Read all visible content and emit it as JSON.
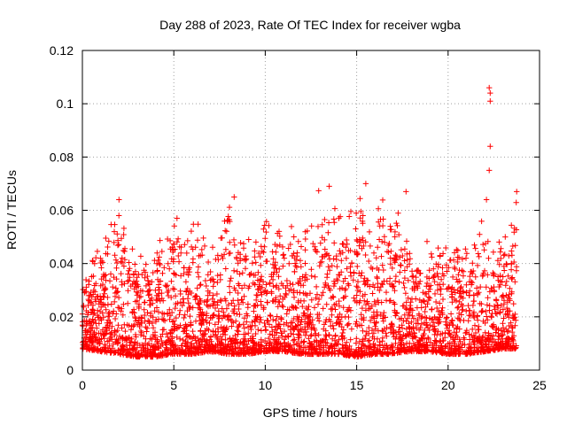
{
  "chart_data": {
    "type": "scatter",
    "title": "Day 288 of 2023, Rate Of TEC Index for receiver wgba",
    "xlabel": "GPS time / hours",
    "ylabel": "ROTI / TECUs",
    "xlim": [
      0,
      25
    ],
    "ylim": [
      0,
      0.12
    ],
    "x_ticks": [
      "0",
      "5",
      "10",
      "15",
      "20",
      "25"
    ],
    "y_ticks": [
      "0",
      "0.02",
      "0.04",
      "0.06",
      "0.08",
      "0.1",
      "0.12"
    ],
    "grid": true,
    "marker": "plus",
    "color": "#ff0000",
    "data_range_x": [
      0,
      23.75
    ],
    "envelope": [
      {
        "x": 0.0,
        "low": 0.008,
        "high": 0.037
      },
      {
        "x": 1.0,
        "low": 0.007,
        "high": 0.051
      },
      {
        "x": 2.0,
        "low": 0.006,
        "high": 0.064
      },
      {
        "x": 3.0,
        "low": 0.005,
        "high": 0.044
      },
      {
        "x": 4.0,
        "low": 0.005,
        "high": 0.046
      },
      {
        "x": 5.0,
        "low": 0.006,
        "high": 0.062
      },
      {
        "x": 6.0,
        "low": 0.006,
        "high": 0.061
      },
      {
        "x": 7.0,
        "low": 0.007,
        "high": 0.049
      },
      {
        "x": 8.0,
        "low": 0.006,
        "high": 0.065
      },
      {
        "x": 9.0,
        "low": 0.006,
        "high": 0.049
      },
      {
        "x": 10.0,
        "low": 0.007,
        "high": 0.061
      },
      {
        "x": 11.0,
        "low": 0.007,
        "high": 0.059
      },
      {
        "x": 12.0,
        "low": 0.006,
        "high": 0.052
      },
      {
        "x": 13.0,
        "low": 0.006,
        "high": 0.069
      },
      {
        "x": 14.0,
        "low": 0.006,
        "high": 0.067
      },
      {
        "x": 15.0,
        "low": 0.005,
        "high": 0.07
      },
      {
        "x": 16.0,
        "low": 0.006,
        "high": 0.065
      },
      {
        "x": 17.0,
        "low": 0.006,
        "high": 0.067
      },
      {
        "x": 18.0,
        "low": 0.007,
        "high": 0.047
      },
      {
        "x": 19.0,
        "low": 0.007,
        "high": 0.05
      },
      {
        "x": 20.0,
        "low": 0.006,
        "high": 0.05
      },
      {
        "x": 21.0,
        "low": 0.006,
        "high": 0.051
      },
      {
        "x": 22.0,
        "low": 0.007,
        "high": 0.06
      },
      {
        "x": 23.0,
        "low": 0.008,
        "high": 0.053
      },
      {
        "x": 23.75,
        "low": 0.008,
        "high": 0.067
      }
    ],
    "notable_points": [
      {
        "x": 22.25,
        "y": 0.106
      },
      {
        "x": 22.3,
        "y": 0.104
      },
      {
        "x": 22.3,
        "y": 0.101
      },
      {
        "x": 22.3,
        "y": 0.084
      },
      {
        "x": 22.25,
        "y": 0.075
      },
      {
        "x": 22.1,
        "y": 0.064
      },
      {
        "x": 15.5,
        "y": 0.07
      },
      {
        "x": 13.5,
        "y": 0.069
      },
      {
        "x": 17.7,
        "y": 0.067
      },
      {
        "x": 8.3,
        "y": 0.065
      },
      {
        "x": 2.0,
        "y": 0.064
      },
      {
        "x": 23.75,
        "y": 0.067
      }
    ]
  }
}
